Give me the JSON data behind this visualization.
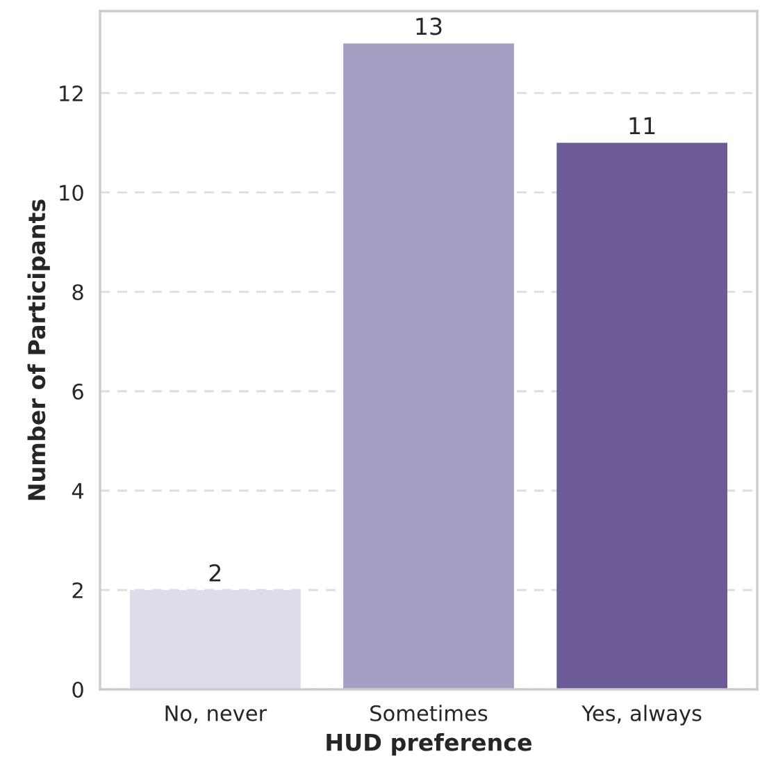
{
  "chart_data": {
    "type": "bar",
    "xlabel": "HUD preference",
    "ylabel": "Number of Participants",
    "categories": [
      "No, never",
      "Sometimes",
      "Yes, always"
    ],
    "values": [
      2,
      13,
      11
    ],
    "colors": [
      "#dcdcea",
      "#a3a0c4",
      "#6c5a99"
    ],
    "ylim": [
      0,
      13.65
    ],
    "yticks": [
      0,
      2,
      4,
      6,
      8,
      10,
      12
    ],
    "grid": "y",
    "data_labels": true
  }
}
